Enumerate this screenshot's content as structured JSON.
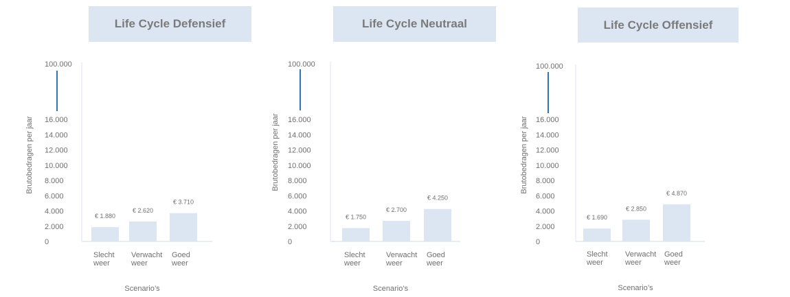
{
  "chart_data": [
    {
      "type": "bar",
      "title": "Life Cycle Defensief",
      "ylabel": "Brutobedragen per jaar",
      "xlabel": "Scenario’s",
      "categories": [
        [
          "Slecht",
          "weer"
        ],
        [
          "Verwacht",
          "weer"
        ],
        [
          "Goed",
          "weer"
        ]
      ],
      "values": [
        1880,
        2620,
        3710
      ],
      "value_labels": [
        "€ 1.880",
        "€ 2.620",
        "€ 3.710"
      ],
      "yticks": [
        "0",
        "2.000",
        "4.000",
        "6.000",
        "8.000",
        "10.000",
        "12.000",
        "14.000",
        "16.000"
      ],
      "ylim": [
        0,
        16000
      ],
      "ybreak_label": "100.000",
      "bar_color": "#dce6f2",
      "break_color": "#2e75b6"
    },
    {
      "type": "bar",
      "title": "Life Cycle Neutraal",
      "ylabel": "Brutobedragen per jaar",
      "xlabel": "Scenario’s",
      "categories": [
        [
          "Slecht",
          "weer"
        ],
        [
          "Verwacht",
          "weer"
        ],
        [
          "Goed",
          "weer"
        ]
      ],
      "values": [
        1750,
        2700,
        4250
      ],
      "value_labels": [
        "€ 1.750",
        "€ 2.700",
        "€ 4.250"
      ],
      "yticks": [
        "0",
        "2.000",
        "4.000",
        "6.000",
        "8.000",
        "10.000",
        "12.000",
        "14.000",
        "16.000"
      ],
      "ylim": [
        0,
        16000
      ],
      "ybreak_label": "100.000",
      "bar_color": "#dce6f2",
      "break_color": "#2e75b6"
    },
    {
      "type": "bar",
      "title": "Life Cycle Offensief",
      "ylabel": "Brutobedragen per jaar",
      "xlabel": "Scenario’s",
      "categories": [
        [
          "Slecht",
          "weer"
        ],
        [
          "Verwacht",
          "weer"
        ],
        [
          "Goed",
          "weer"
        ]
      ],
      "values": [
        1690,
        2850,
        4870
      ],
      "value_labels": [
        "€ 1.690",
        "€ 2.850",
        "€ 4.870"
      ],
      "yticks": [
        "0",
        "2.000",
        "4.000",
        "6.000",
        "8.000",
        "10.000",
        "12.000",
        "14.000",
        "16.000"
      ],
      "ylim": [
        0,
        16000
      ],
      "ybreak_label": "100.000",
      "bar_color": "#dce6f2",
      "break_color": "#2e75b6"
    }
  ]
}
